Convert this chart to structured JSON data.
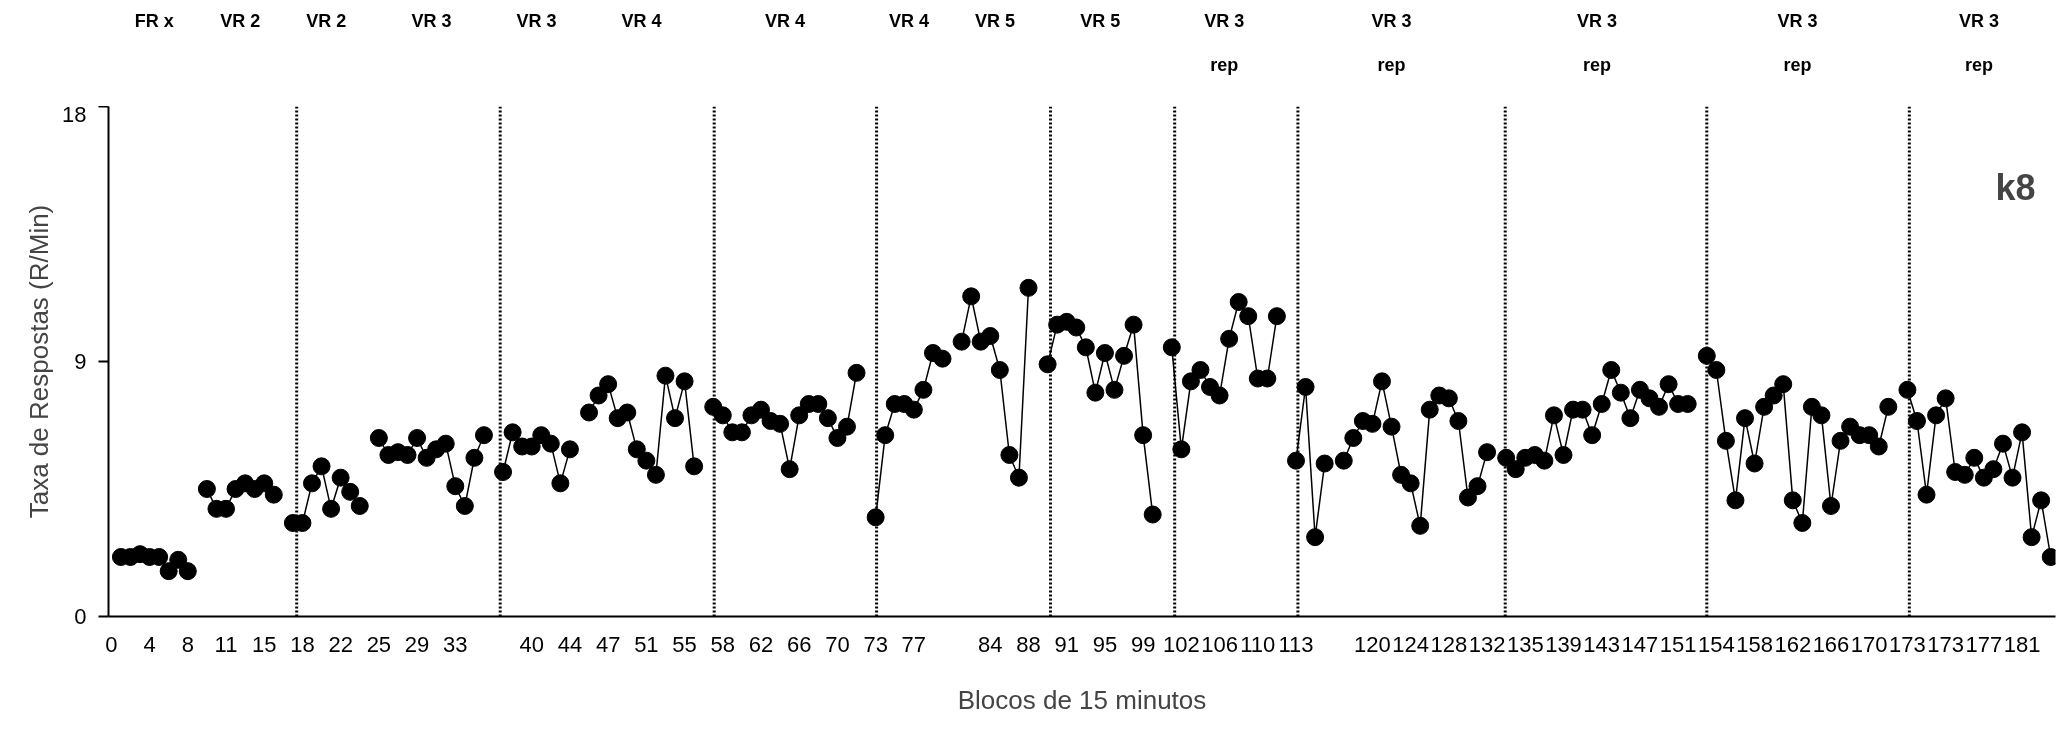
{
  "chart_data": {
    "type": "line",
    "title": "k8",
    "xlabel": "Blocos de 15 minutos",
    "ylabel": "Taxa de Respostas (R/Min)",
    "categories": [
      "0",
      null,
      null,
      null,
      "4",
      null,
      null,
      null,
      "8",
      null,
      null,
      null,
      "11",
      null,
      null,
      null,
      "15",
      null,
      null,
      null,
      "18",
      null,
      null,
      null,
      "22",
      null,
      null,
      null,
      "25",
      null,
      null,
      null,
      "29",
      null,
      null,
      null,
      "33",
      null,
      null,
      null,
      null,
      null,
      null,
      null,
      "40",
      null,
      null,
      null,
      "44",
      null,
      null,
      null,
      "47",
      null,
      null,
      null,
      "51",
      null,
      null,
      null,
      "55",
      null,
      null,
      null,
      "58",
      null,
      null,
      null,
      "62",
      null,
      null,
      null,
      "66",
      null,
      null,
      null,
      "70",
      null,
      null,
      null,
      "73",
      null,
      null,
      null,
      "77",
      null,
      null,
      null,
      null,
      null,
      null,
      null,
      "84",
      null,
      null,
      null,
      "88",
      null,
      null,
      null,
      "91",
      null,
      null,
      null,
      "95",
      null,
      null,
      null,
      "99",
      null,
      null,
      null,
      "102",
      null,
      null,
      null,
      "106",
      null,
      null,
      null,
      "110",
      null,
      null,
      null,
      "113",
      null,
      null,
      null,
      null,
      null,
      null,
      null,
      "120",
      null,
      null,
      null,
      "124",
      null,
      null,
      null,
      "128",
      null,
      null,
      null,
      "132",
      null,
      null,
      null,
      "135",
      null,
      null,
      null,
      "139",
      null,
      null,
      null,
      "143",
      null,
      null,
      null,
      "147",
      null,
      null,
      null,
      "151",
      null,
      null,
      null,
      "154",
      null,
      null,
      null,
      "158",
      null,
      null,
      null,
      "162",
      null,
      null,
      null,
      "166",
      null,
      null,
      null,
      "170",
      null,
      null,
      null,
      "173",
      null,
      null,
      null,
      "173",
      null,
      null,
      null,
      "177",
      null,
      null,
      null,
      "181",
      null,
      null,
      null
    ],
    "series": [
      {
        "color": "#000000",
        "values": [
          null,
          2.1,
          2.1,
          2.2,
          2.1,
          2.1,
          1.6,
          2.0,
          1.6,
          null,
          4.5,
          3.8,
          3.8,
          4.5,
          4.7,
          4.5,
          4.7,
          4.3,
          null,
          3.3,
          3.3,
          4.7,
          5.3,
          3.8,
          4.9,
          4.4,
          3.9,
          null,
          6.3,
          5.7,
          5.8,
          5.7,
          6.3,
          5.6,
          5.9,
          6.1,
          4.6,
          3.9,
          5.6,
          6.4,
          null,
          5.1,
          6.5,
          6.0,
          6.0,
          6.4,
          6.1,
          4.7,
          5.9,
          null,
          7.2,
          7.8,
          8.2,
          7.0,
          7.2,
          5.9,
          5.5,
          5.0,
          8.5,
          7.0,
          8.3,
          5.3,
          null,
          7.4,
          7.1,
          6.5,
          6.5,
          7.1,
          7.3,
          6.9,
          6.8,
          5.2,
          7.1,
          7.5,
          7.5,
          7.0,
          6.3,
          6.7,
          8.6,
          null,
          3.5,
          6.4,
          7.5,
          7.5,
          7.3,
          8.0,
          9.3,
          9.1,
          null,
          9.7,
          11.3,
          9.7,
          9.9,
          8.7,
          5.7,
          4.9,
          11.6,
          null,
          8.9,
          10.3,
          10.4,
          10.2,
          9.5,
          7.9,
          9.3,
          8.0,
          9.2,
          10.3,
          6.4,
          3.6,
          null,
          9.5,
          5.9,
          8.3,
          8.7,
          8.1,
          7.8,
          9.8,
          11.1,
          10.6,
          8.4,
          8.4,
          10.6,
          null,
          5.5,
          8.1,
          2.8,
          5.4,
          null,
          5.5,
          6.3,
          6.9,
          6.8,
          8.3,
          6.7,
          5.0,
          4.7,
          3.2,
          7.3,
          7.8,
          7.7,
          6.9,
          4.2,
          4.6,
          5.8,
          null,
          5.6,
          5.2,
          5.6,
          5.7,
          5.5,
          7.1,
          5.7,
          7.3,
          7.3,
          6.4,
          7.5,
          8.7,
          7.9,
          7.0,
          8.0,
          7.7,
          7.4,
          8.2,
          7.5,
          7.5,
          null,
          9.2,
          8.7,
          6.2,
          4.1,
          7.0,
          5.4,
          7.4,
          7.8,
          8.2,
          4.1,
          3.3,
          7.4,
          7.1,
          3.9,
          6.2,
          6.7,
          6.4,
          6.4,
          6.0,
          7.4,
          null,
          8.0,
          6.9,
          4.3,
          7.1,
          7.7,
          5.1,
          5.0,
          5.6,
          4.9,
          5.2,
          6.1,
          4.9,
          6.5,
          2.8,
          4.1,
          2.1
        ]
      }
    ],
    "ylim": [
      0,
      18
    ],
    "yticks": [
      0,
      9,
      18
    ],
    "annotations": [
      "FR x",
      "VR 2",
      "VR 2",
      "VR 3",
      "VR 3",
      "VR 4",
      "VR 4",
      "VR 4",
      "VR 5",
      "VR 5",
      "VR 3\nrep",
      "VR 3\nrep",
      "VR 3\nrep",
      "VR 3\nrep",
      "VR 3\nrep"
    ],
    "marker": "circle",
    "line_style": "solid"
  }
}
